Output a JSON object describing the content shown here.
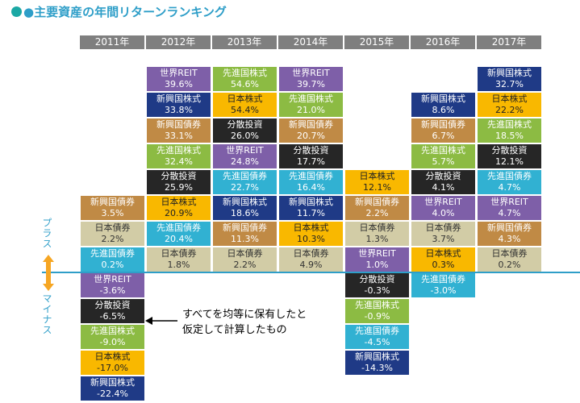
{
  "title": "●主要資産の年間リターンランキング",
  "side_labels": {
    "plus": "プラス",
    "minus": "マイナス"
  },
  "annotation": [
    "すべてを均等に保有したと",
    "仮定して計算したもの"
  ],
  "colors": {
    "世界REIT": "#7E5FA8",
    "日本株式": "#F9B800",
    "先進国株式": "#8CBB43",
    "新興国株式": "#1F3A86",
    "分散投資": "#262626",
    "新興国債券": "#C08A45",
    "日本債券": "#D2CCA6",
    "先進国債券": "#31B1D2",
    "header": "#7F7F7F",
    "zero_line": "#2E9EC8"
  },
  "chart_data": {
    "type": "table",
    "title": "主要資産の年間リターンランキング",
    "columns": [
      {
        "year": "2011年",
        "positive": [
          {
            "asset": "新興国債券",
            "value": "3.5%"
          },
          {
            "asset": "日本債券",
            "value": "2.2%"
          },
          {
            "asset": "先進国債券",
            "value": "0.2%"
          }
        ],
        "negative": [
          {
            "asset": "世界REIT",
            "value": "-3.6%"
          },
          {
            "asset": "分散投資",
            "value": "-6.5%"
          },
          {
            "asset": "先進国株式",
            "value": "-9.0%"
          },
          {
            "asset": "日本株式",
            "value": "-17.0%"
          },
          {
            "asset": "新興国株式",
            "value": "-22.4%"
          }
        ]
      },
      {
        "year": "2012年",
        "positive": [
          {
            "asset": "世界REIT",
            "value": "39.6%"
          },
          {
            "asset": "新興国株式",
            "value": "33.8%"
          },
          {
            "asset": "新興国債券",
            "value": "33.1%"
          },
          {
            "asset": "先進国株式",
            "value": "32.4%"
          },
          {
            "asset": "分散投資",
            "value": "25.9%"
          },
          {
            "asset": "日本株式",
            "value": "20.9%"
          },
          {
            "asset": "先進国債券",
            "value": "20.4%"
          },
          {
            "asset": "日本債券",
            "value": "1.8%"
          }
        ],
        "negative": []
      },
      {
        "year": "2013年",
        "positive": [
          {
            "asset": "先進国株式",
            "value": "54.6%"
          },
          {
            "asset": "日本株式",
            "value": "54.4%"
          },
          {
            "asset": "分散投資",
            "value": "26.0%"
          },
          {
            "asset": "世界REIT",
            "value": "24.8%"
          },
          {
            "asset": "先進国債券",
            "value": "22.7%"
          },
          {
            "asset": "新興国株式",
            "value": "18.6%"
          },
          {
            "asset": "新興国債券",
            "value": "11.3%"
          },
          {
            "asset": "日本債券",
            "value": "2.2%"
          }
        ],
        "negative": []
      },
      {
        "year": "2014年",
        "positive": [
          {
            "asset": "世界REIT",
            "value": "39.7%"
          },
          {
            "asset": "先進国株式",
            "value": "21.0%"
          },
          {
            "asset": "新興国債券",
            "value": "20.7%"
          },
          {
            "asset": "分散投資",
            "value": "17.7%"
          },
          {
            "asset": "先進国債券",
            "value": "16.4%"
          },
          {
            "asset": "新興国株式",
            "value": "11.7%"
          },
          {
            "asset": "日本株式",
            "value": "10.3%"
          },
          {
            "asset": "日本債券",
            "value": "4.9%"
          }
        ],
        "negative": []
      },
      {
        "year": "2015年",
        "positive": [
          {
            "asset": "日本株式",
            "value": "12.1%"
          },
          {
            "asset": "新興国債券",
            "value": "2.2%"
          },
          {
            "asset": "日本債券",
            "value": "1.3%"
          },
          {
            "asset": "世界REIT",
            "value": "1.0%"
          }
        ],
        "negative": [
          {
            "asset": "分散投資",
            "value": "-0.3%"
          },
          {
            "asset": "先進国株式",
            "value": "-0.9%"
          },
          {
            "asset": "先進国債券",
            "value": "-4.5%"
          },
          {
            "asset": "新興国株式",
            "value": "-14.3%"
          }
        ]
      },
      {
        "year": "2016年",
        "positive": [
          {
            "asset": "新興国株式",
            "value": "8.6%"
          },
          {
            "asset": "新興国債券",
            "value": "6.7%"
          },
          {
            "asset": "先進国株式",
            "value": "5.7%"
          },
          {
            "asset": "分散投資",
            "value": "4.1%"
          },
          {
            "asset": "世界REIT",
            "value": "4.0%"
          },
          {
            "asset": "日本債券",
            "value": "3.7%"
          },
          {
            "asset": "日本株式",
            "value": "0.3%"
          }
        ],
        "negative": [
          {
            "asset": "先進国債券",
            "value": "-3.0%"
          }
        ]
      },
      {
        "year": "2017年",
        "positive": [
          {
            "asset": "新興国株式",
            "value": "32.7%"
          },
          {
            "asset": "日本株式",
            "value": "22.2%"
          },
          {
            "asset": "先進国株式",
            "value": "18.5%"
          },
          {
            "asset": "分散投資",
            "value": "12.1%"
          },
          {
            "asset": "先進国債券",
            "value": "4.7%"
          },
          {
            "asset": "世界REIT",
            "value": "4.7%"
          },
          {
            "asset": "新興国債券",
            "value": "4.3%"
          },
          {
            "asset": "日本債券",
            "value": "0.2%"
          }
        ],
        "negative": []
      }
    ]
  }
}
